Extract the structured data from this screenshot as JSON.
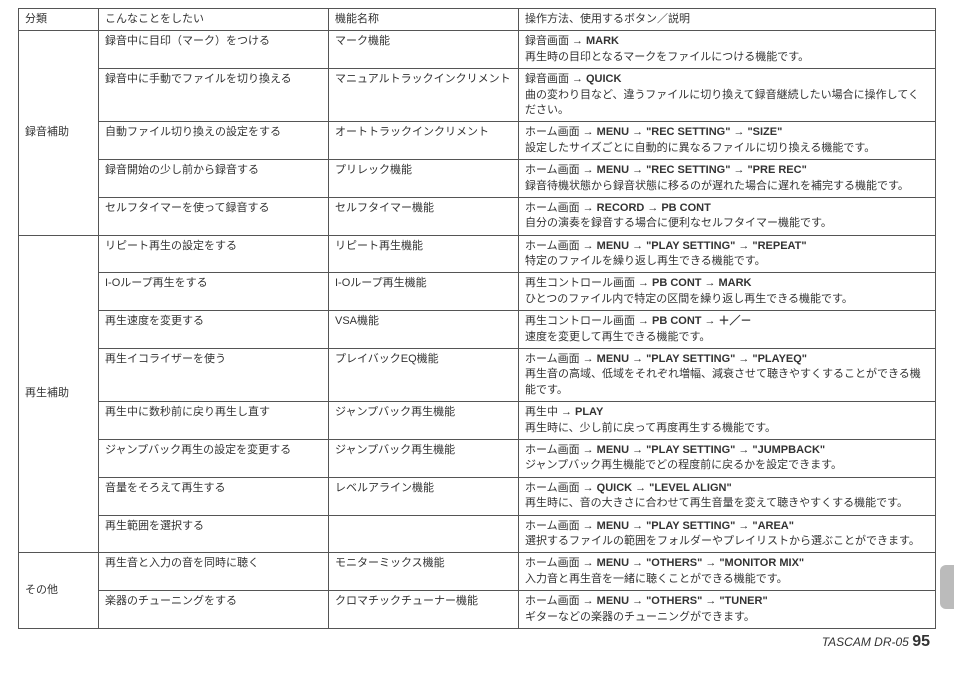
{
  "header": {
    "c1": "分類",
    "c2": "こんなことをしたい",
    "c3": "機能名称",
    "c4": "操作方法、使用するボタン／説明"
  },
  "groups": [
    {
      "label": "録音補助",
      "rows": [
        {
          "want": "録音中に目印（マーク）をつける",
          "func": "マーク機能",
          "op_parts": [
            "録音画面",
            "→",
            "MARK"
          ],
          "op_bold": [
            0,
            0,
            1
          ],
          "desc": "再生時の目印となるマークをファイルにつける機能です。"
        },
        {
          "want": "録音中に手動でファイルを切り換える",
          "func": "マニュアルトラックインクリメント",
          "op_parts": [
            "録音画面",
            "→",
            "QUICK"
          ],
          "op_bold": [
            0,
            0,
            1
          ],
          "desc": "曲の変わり目など、違うファイルに切り換えて録音継続したい場合に操作してください。"
        },
        {
          "want": "自動ファイル切り換えの設定をする",
          "func": "オートトラックインクリメント",
          "op_parts": [
            "ホーム画面",
            "→",
            "MENU",
            "→",
            "\"REC SETTING\"",
            "→",
            "\"SIZE\""
          ],
          "op_bold": [
            0,
            0,
            1,
            0,
            1,
            0,
            1
          ],
          "desc": "設定したサイズごとに自動的に異なるファイルに切り換える機能です。"
        },
        {
          "want": "録音開始の少し前から録音する",
          "func": "プリレック機能",
          "op_parts": [
            "ホーム画面",
            "→",
            "MENU",
            "→",
            "\"REC SETTING\"",
            "→",
            "\"PRE REC\""
          ],
          "op_bold": [
            0,
            0,
            1,
            0,
            1,
            0,
            1
          ],
          "desc": "録音待機状態から録音状態に移るのが遅れた場合に遅れを補完する機能です。"
        },
        {
          "want": "セルフタイマーを使って録音する",
          "func": "セルフタイマー機能",
          "op_parts": [
            "ホーム画面",
            "→",
            "RECORD",
            "→",
            "PB CONT"
          ],
          "op_bold": [
            0,
            0,
            1,
            0,
            1
          ],
          "desc": "自分の演奏を録音する場合に便利なセルフタイマー機能です。"
        }
      ]
    },
    {
      "label": "再生補助",
      "rows": [
        {
          "want": "リピート再生の設定をする",
          "func": "リピート再生機能",
          "op_parts": [
            "ホーム画面",
            "→",
            "MENU",
            "→",
            "\"PLAY SETTING\"",
            "→",
            "\"REPEAT\""
          ],
          "op_bold": [
            0,
            0,
            1,
            0,
            1,
            0,
            1
          ],
          "desc": "特定のファイルを繰り返し再生できる機能です。"
        },
        {
          "want": "I-Oループ再生をする",
          "func": "I-Oループ再生機能",
          "op_parts": [
            "再生コントロール画面",
            "→",
            "PB CONT",
            "→",
            "MARK"
          ],
          "op_bold": [
            0,
            0,
            1,
            0,
            1
          ],
          "desc": "ひとつのファイル内で特定の区間を繰り返し再生できる機能です。"
        },
        {
          "want": "再生速度を変更する",
          "func": "VSA機能",
          "op_parts": [
            "再生コントロール画面",
            "→",
            "PB CONT",
            "→",
            "＋／－"
          ],
          "op_bold": [
            0,
            0,
            1,
            0,
            1
          ],
          "desc": "速度を変更して再生できる機能です。"
        },
        {
          "want": "再生イコライザーを使う",
          "func": "プレイバックEQ機能",
          "op_parts": [
            "ホーム画面",
            "→",
            "MENU",
            "→",
            "\"PLAY SETTING\"",
            "→",
            "\"PLAYEQ\""
          ],
          "op_bold": [
            0,
            0,
            1,
            0,
            1,
            0,
            1
          ],
          "desc": "再生音の高域、低域をそれぞれ増幅、減衰させて聴きやすくすることができる機能です。"
        },
        {
          "want": "再生中に数秒前に戻り再生し直す",
          "func": "ジャンプバック再生機能",
          "op_parts": [
            "再生中",
            "→",
            "PLAY"
          ],
          "op_bold": [
            0,
            0,
            1
          ],
          "desc": "再生時に、少し前に戻って再度再生する機能です。"
        },
        {
          "want": "ジャンプバック再生の設定を変更する",
          "func": "ジャンプバック再生機能",
          "op_parts": [
            "ホーム画面",
            "→",
            "MENU",
            "→",
            "\"PLAY SETTING\"",
            "→",
            "\"JUMPBACK\""
          ],
          "op_bold": [
            0,
            0,
            1,
            0,
            1,
            0,
            1
          ],
          "desc": "ジャンプバック再生機能でどの程度前に戻るかを設定できます。"
        },
        {
          "want": "音量をそろえて再生する",
          "func": "レベルアライン機能",
          "op_parts": [
            "ホーム画面",
            "→",
            "QUICK",
            "→",
            "\"LEVEL ALIGN\""
          ],
          "op_bold": [
            0,
            0,
            1,
            0,
            1
          ],
          "desc": "再生時に、音の大きさに合わせて再生音量を変えて聴きやすくする機能です。"
        },
        {
          "want": "再生範囲を選択する",
          "func": "",
          "op_parts": [
            "ホーム画面",
            "→",
            "MENU",
            "→",
            "\"PLAY SETTING\"",
            "→",
            "\"AREA\""
          ],
          "op_bold": [
            0,
            0,
            1,
            0,
            1,
            0,
            1
          ],
          "desc": "選択するファイルの範囲をフォルダーやプレイリストから選ぶことができます。"
        }
      ]
    },
    {
      "label": "その他",
      "rows": [
        {
          "want": "再生音と入力の音を同時に聴く",
          "func": "モニターミックス機能",
          "op_parts": [
            "ホーム画面",
            "→",
            "MENU",
            "→",
            "\"OTHERS\"",
            "→",
            "\"MONITOR MIX\""
          ],
          "op_bold": [
            0,
            0,
            1,
            0,
            1,
            0,
            1
          ],
          "desc": "入力音と再生音を一緒に聴くことができる機能です。"
        },
        {
          "want": "楽器のチューニングをする",
          "func": "クロマチックチューナー機能",
          "op_parts": [
            "ホーム画面",
            "→",
            "MENU",
            "→",
            "\"OTHERS\"",
            "→",
            "\"TUNER\""
          ],
          "op_bold": [
            0,
            0,
            1,
            0,
            1,
            0,
            1
          ],
          "desc": "ギターなどの楽器のチューニングができます。"
        }
      ]
    }
  ],
  "footer": {
    "model": "TASCAM  DR-05",
    "page": "95"
  }
}
